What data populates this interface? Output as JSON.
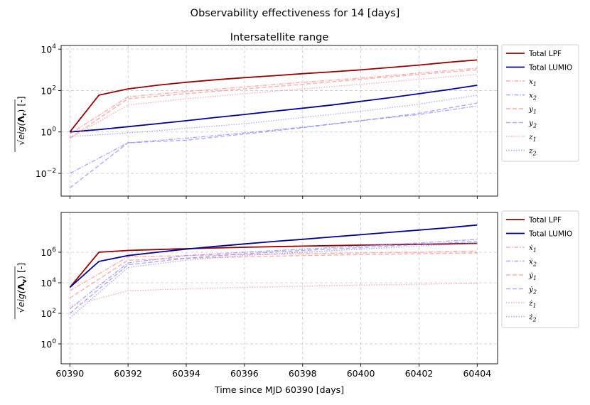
{
  "chart_data": [
    {
      "type": "line",
      "title": "Intersatellite range",
      "xlabel": "",
      "ylabel": "√eig(Λr) [-]",
      "yscale": "log",
      "xlim": [
        60389.7,
        60404.7
      ],
      "ylim": [
        0.0008,
        15000
      ],
      "yticks": [
        0.01,
        1,
        100,
        10000
      ],
      "ytick_labels": [
        "10",
        "10",
        "10",
        "10"
      ],
      "ytick_exps": [
        "−2",
        "0",
        "2",
        "4"
      ],
      "grid": true,
      "legend_position": "outside-right",
      "series": [
        {
          "name": "Total LPF",
          "color": "#990000",
          "style": "solid",
          "x": [
            60390,
            60391,
            60392,
            60393,
            60394,
            60395,
            60396,
            60397,
            60398,
            60399,
            60400,
            60401,
            60402,
            60403,
            60404
          ],
          "y": [
            1,
            60,
            120,
            180,
            250,
            330,
            420,
            520,
            650,
            800,
            1000,
            1300,
            1700,
            2300,
            3000
          ]
        },
        {
          "name": "Total LUMIO",
          "color": "#000099",
          "style": "solid",
          "x": [
            60390,
            60391,
            60392,
            60393,
            60394,
            60395,
            60396,
            60397,
            60398,
            60399,
            60400,
            60401,
            60402,
            60403,
            60404
          ],
          "y": [
            1,
            1.3,
            1.8,
            2.5,
            3.5,
            5,
            7,
            10,
            14,
            20,
            30,
            45,
            70,
            110,
            180
          ]
        },
        {
          "name": "x_1",
          "color": "#ff8080",
          "style": "dashdot",
          "x": [
            60390,
            60392,
            60394,
            60396,
            60398,
            60400,
            60402,
            60404
          ],
          "y": [
            0.8,
            50,
            90,
            150,
            250,
            400,
            700,
            1200
          ]
        },
        {
          "name": "x_2",
          "color": "#8080ff",
          "style": "dashdot",
          "x": [
            60390,
            60392,
            60394,
            60396,
            60398,
            60400,
            60402,
            60404
          ],
          "y": [
            0.01,
            0.3,
            0.5,
            0.9,
            1.7,
            3.5,
            7,
            18
          ]
        },
        {
          "name": "y_1",
          "color": "#ff8080",
          "style": "dashed",
          "x": [
            60390,
            60392,
            60394,
            60396,
            60398,
            60400,
            60402,
            60404
          ],
          "y": [
            0.5,
            40,
            70,
            120,
            200,
            350,
            600,
            1000
          ]
        },
        {
          "name": "y_2",
          "color": "#8080ff",
          "style": "dashed",
          "x": [
            60390,
            60392,
            60394,
            60396,
            60398,
            60400,
            60402,
            60404
          ],
          "y": [
            0.002,
            0.3,
            0.4,
            0.8,
            1.6,
            3.5,
            8,
            25
          ]
        },
        {
          "name": "z_1",
          "color": "#ff8080",
          "style": "dotted",
          "x": [
            60390,
            60392,
            60394,
            60396,
            60398,
            60400,
            60402,
            60404
          ],
          "y": [
            0.5,
            20,
            40,
            70,
            120,
            200,
            350,
            600
          ]
        },
        {
          "name": "z_2",
          "color": "#8080ff",
          "style": "dotted",
          "x": [
            60390,
            60392,
            60394,
            60396,
            60398,
            60400,
            60402,
            60404
          ],
          "y": [
            0.6,
            0.9,
            1.5,
            2.5,
            5,
            10,
            22,
            60
          ]
        }
      ]
    },
    {
      "type": "line",
      "title": "",
      "xlabel": "Time since MJD 60390 [days]",
      "ylabel": "√eig(Λv) [-]",
      "yscale": "log",
      "xlim": [
        60389.7,
        60404.7
      ],
      "ylim": [
        0.05,
        400000000
      ],
      "yticks": [
        1,
        100,
        10000,
        1000000
      ],
      "ytick_labels": [
        "10",
        "10",
        "10",
        "10"
      ],
      "ytick_exps": [
        "0",
        "2",
        "4",
        "6"
      ],
      "xticks": [
        60390,
        60392,
        60394,
        60396,
        60398,
        60400,
        60402,
        60404
      ],
      "xtick_labels": [
        "60390",
        "60392",
        "60394",
        "60396",
        "60398",
        "60400",
        "60402",
        "60404"
      ],
      "grid": true,
      "legend_position": "outside-right",
      "series": [
        {
          "name": "Total LPF",
          "color": "#990000",
          "style": "solid",
          "x": [
            60390,
            60391,
            60392,
            60393,
            60394,
            60395,
            60396,
            60397,
            60398,
            60399,
            60400,
            60401,
            60402,
            60403,
            60404
          ],
          "y": [
            5000,
            1000000,
            1300000,
            1500000,
            1700000,
            1900000,
            2100000,
            2300000,
            2500000,
            2700000,
            2900000,
            3100000,
            3300000,
            3500000,
            3800000
          ]
        },
        {
          "name": "Total LUMIO",
          "color": "#000099",
          "style": "solid",
          "x": [
            60390,
            60391,
            60392,
            60393,
            60394,
            60395,
            60396,
            60397,
            60398,
            60399,
            60400,
            60401,
            60402,
            60403,
            60404
          ],
          "y": [
            5000,
            250000,
            600000,
            1000000,
            1600000,
            2400000,
            3500000,
            5000000,
            7000000,
            10000000,
            14000000,
            20000000,
            28000000,
            40000000,
            60000000
          ]
        },
        {
          "name": "ẋ_1",
          "color": "#ff8080",
          "style": "dashdot",
          "x": [
            60390,
            60392,
            60394,
            60396,
            60398,
            60400,
            60402,
            60404
          ],
          "y": [
            3000,
            500000,
            600000,
            700000,
            800000,
            900000,
            1000000,
            1200000
          ]
        },
        {
          "name": "ẋ_2",
          "color": "#8080ff",
          "style": "dashdot",
          "x": [
            60390,
            60392,
            60394,
            60396,
            60398,
            60400,
            60402,
            60404
          ],
          "y": [
            200,
            200000,
            600000,
            1000000,
            1600000,
            2500000,
            4000000,
            7000000
          ]
        },
        {
          "name": "ẏ_1",
          "color": "#ff8080",
          "style": "dashed",
          "x": [
            60390,
            60392,
            60394,
            60396,
            60398,
            60400,
            60402,
            60404
          ],
          "y": [
            1000,
            300000,
            400000,
            500000,
            600000,
            700000,
            800000,
            900000
          ]
        },
        {
          "name": "ẏ_2",
          "color": "#8080ff",
          "style": "dashed",
          "x": [
            60390,
            60392,
            60394,
            60396,
            60398,
            60400,
            60402,
            60404
          ],
          "y": [
            100,
            150000,
            400000,
            800000,
            1300000,
            2000000,
            3200000,
            5000000
          ]
        },
        {
          "name": "ż_1",
          "color": "#ff8080",
          "style": "dotted",
          "x": [
            60390,
            60392,
            60394,
            60396,
            60398,
            60400,
            60402,
            60404
          ],
          "y": [
            300,
            3000,
            4000,
            5000,
            6000,
            7000,
            8000,
            9000
          ]
        },
        {
          "name": "ż_2",
          "color": "#8080ff",
          "style": "dotted",
          "x": [
            60390,
            60392,
            60394,
            60396,
            60398,
            60400,
            60402,
            60404
          ],
          "y": [
            50,
            100000,
            300000,
            600000,
            1000000,
            1600000,
            2500000,
            4000000
          ]
        }
      ]
    }
  ],
  "suptitle": "Observability effectiveness for 14 [days]",
  "legend_top": [
    {
      "label": "Total LPF",
      "base": "",
      "sub": "",
      "color": "#990000",
      "style": "solid"
    },
    {
      "label": "Total LUMIO",
      "base": "",
      "sub": "",
      "color": "#000099",
      "style": "solid"
    },
    {
      "label": "",
      "base": "x",
      "sub": "1",
      "color": "#ff8080",
      "style": "dashdot"
    },
    {
      "label": "",
      "base": "x",
      "sub": "2",
      "color": "#8080ff",
      "style": "dashdot"
    },
    {
      "label": "",
      "base": "y",
      "sub": "1",
      "color": "#ff8080",
      "style": "dashed"
    },
    {
      "label": "",
      "base": "y",
      "sub": "2",
      "color": "#8080ff",
      "style": "dashed"
    },
    {
      "label": "",
      "base": "z",
      "sub": "1",
      "color": "#ff8080",
      "style": "dotted"
    },
    {
      "label": "",
      "base": "z",
      "sub": "2",
      "color": "#8080ff",
      "style": "dotted"
    }
  ],
  "legend_bottom": [
    {
      "label": "Total LPF",
      "base": "",
      "sub": "",
      "color": "#990000",
      "style": "solid"
    },
    {
      "label": "Total LUMIO",
      "base": "",
      "sub": "",
      "color": "#000099",
      "style": "solid"
    },
    {
      "label": "",
      "base": "ẋ",
      "sub": "1",
      "color": "#ff8080",
      "style": "dashdot"
    },
    {
      "label": "",
      "base": "ẋ",
      "sub": "2",
      "color": "#8080ff",
      "style": "dashdot"
    },
    {
      "label": "",
      "base": "ẏ",
      "sub": "1",
      "color": "#ff8080",
      "style": "dashed"
    },
    {
      "label": "",
      "base": "ẏ",
      "sub": "2",
      "color": "#8080ff",
      "style": "dashed"
    },
    {
      "label": "",
      "base": "ż",
      "sub": "1",
      "color": "#ff8080",
      "style": "dotted"
    },
    {
      "label": "",
      "base": "ż",
      "sub": "2",
      "color": "#8080ff",
      "style": "dotted"
    }
  ],
  "ylabel_top": {
    "base": "eig(",
    "sym": "Λ",
    "sub": "r",
    "tail": ") [-]"
  },
  "ylabel_bottom": {
    "base": "eig(",
    "sym": "Λ",
    "sub": "v",
    "tail": ") [-]"
  }
}
